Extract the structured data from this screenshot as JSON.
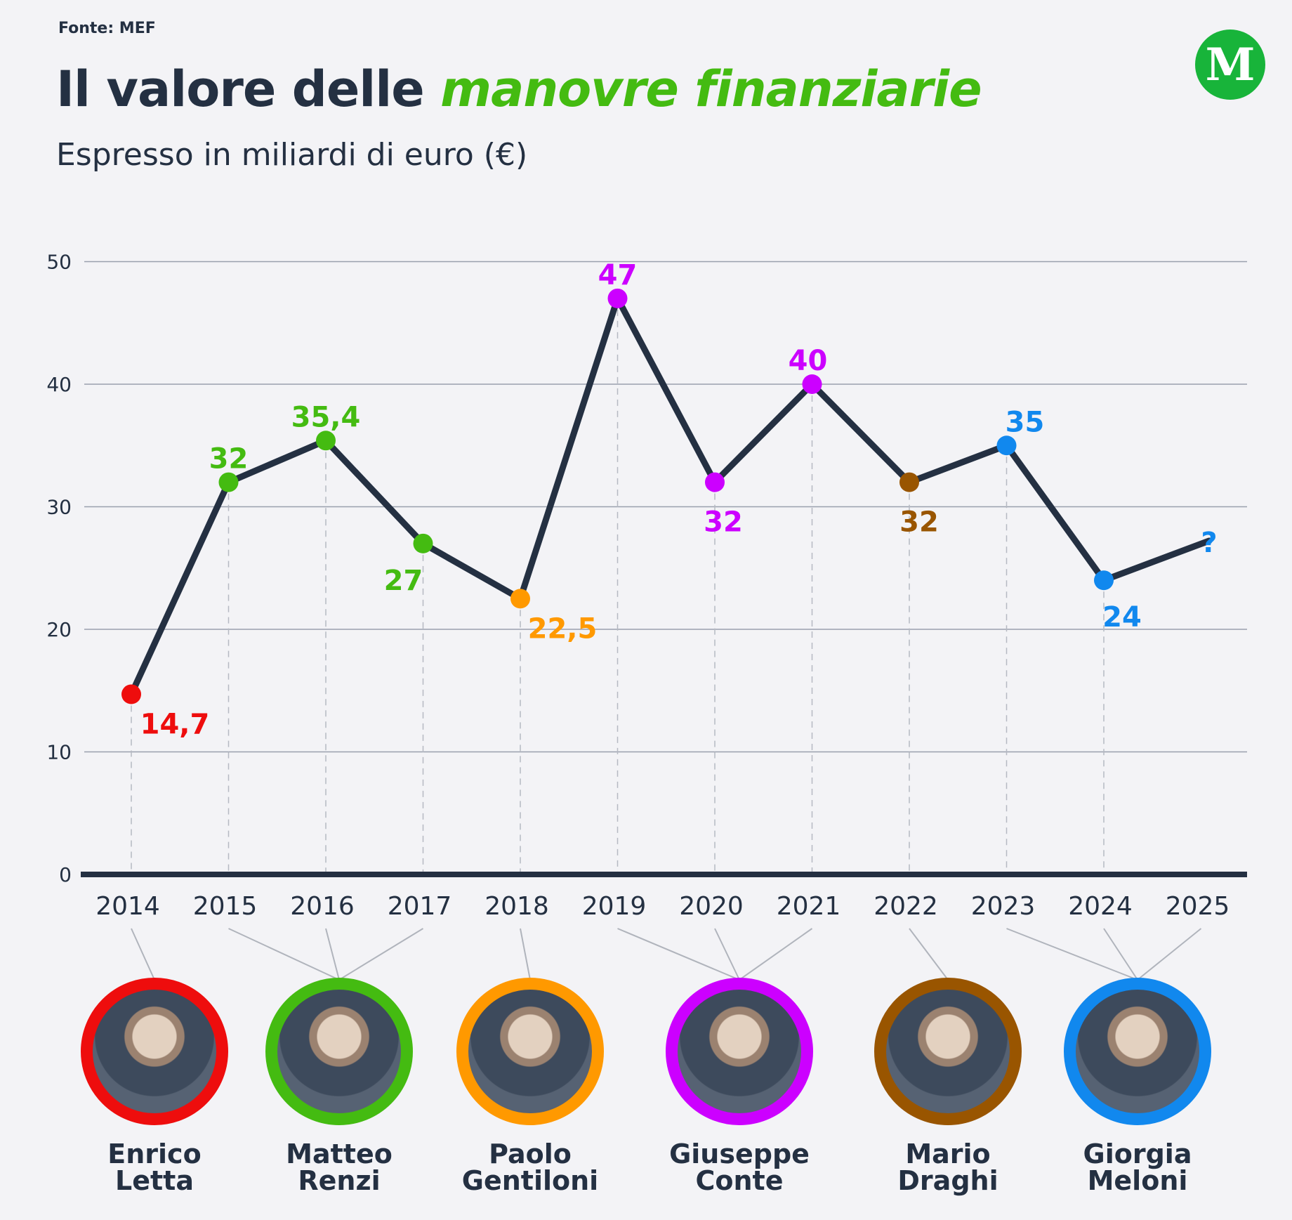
{
  "header": {
    "source": "Fonte: MEF",
    "title_main": "Il valore delle ",
    "title_highlight": "manovre finanziarie",
    "subtitle": "Espresso in miliardi di euro (€)",
    "logo_letter": "M"
  },
  "colors": {
    "line": "#243042",
    "letta": "#ee0d0d",
    "renzi": "#44bb11",
    "gentiloni": "#ff9900",
    "conte": "#cc00ff",
    "draghi": "#995500",
    "meloni": "#1188ee",
    "title_highlight": "#44bb11"
  },
  "chart_data": {
    "type": "line",
    "title": "Il valore delle manovre finanziarie",
    "subtitle": "Espresso in miliardi di euro (€)",
    "ylim": [
      0,
      50
    ],
    "yticks": [
      0,
      10,
      20,
      30,
      40,
      50
    ],
    "x": [
      "2014",
      "2015",
      "2016",
      "2017",
      "2018",
      "2019",
      "2020",
      "2021",
      "2022",
      "2023",
      "2024",
      "2025"
    ],
    "values": [
      14.7,
      32,
      35.4,
      27,
      22.5,
      47,
      32,
      40,
      32,
      35,
      24,
      null
    ],
    "labels": [
      "14,7",
      "32",
      "35,4",
      "27",
      "22,5",
      "47",
      "32",
      "40",
      "32",
      "35",
      "24",
      "?"
    ],
    "point_colors": [
      "#ee0d0d",
      "#44bb11",
      "#44bb11",
      "#44bb11",
      "#ff9900",
      "#cc00ff",
      "#cc00ff",
      "#cc00ff",
      "#995500",
      "#1188ee",
      "#1188ee",
      "#1188ee"
    ],
    "grid": true
  },
  "leaders": [
    {
      "first": "Enrico",
      "last": "Letta",
      "color": "#ee0d0d",
      "years": [
        "2014"
      ]
    },
    {
      "first": "Matteo",
      "last": "Renzi",
      "color": "#44bb11",
      "years": [
        "2015",
        "2016",
        "2017"
      ]
    },
    {
      "first": "Paolo",
      "last": "Gentiloni",
      "color": "#ff9900",
      "years": [
        "2018"
      ]
    },
    {
      "first": "Giuseppe",
      "last": "Conte",
      "color": "#cc00ff",
      "years": [
        "2019",
        "2020",
        "2021"
      ]
    },
    {
      "first": "Mario",
      "last": "Draghi",
      "color": "#995500",
      "years": [
        "2022"
      ]
    },
    {
      "first": "Giorgia",
      "last": "Meloni",
      "color": "#1188ee",
      "years": [
        "2023",
        "2024",
        "2025"
      ]
    }
  ]
}
